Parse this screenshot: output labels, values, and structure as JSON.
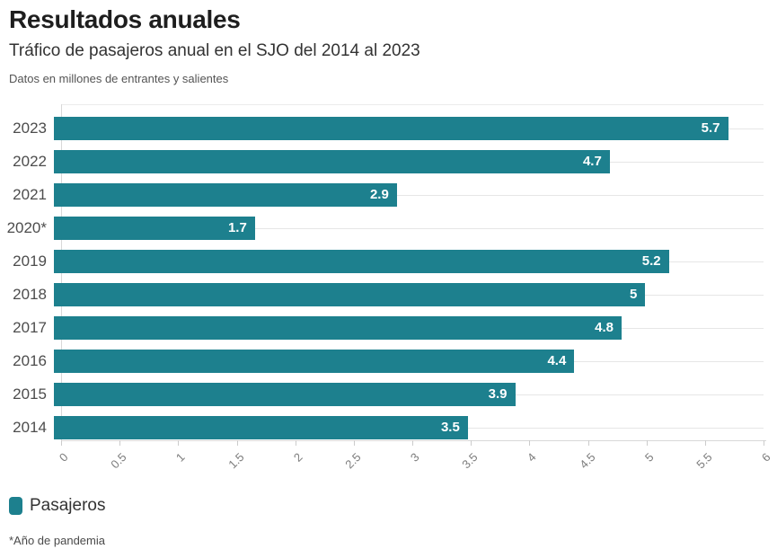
{
  "header": {
    "title": "Resultados anuales",
    "subtitle": "Tráfico de pasajeros anual en el SJO del 2014 al 2023",
    "description": "Datos en millones de entrantes y salientes"
  },
  "chart_data": {
    "type": "bar",
    "orientation": "horizontal",
    "title": "Resultados anuales",
    "subtitle": "Tráfico de pasajeros anual en el SJO del 2014 al 2023",
    "units_note": "Datos en millones de entrantes y salientes",
    "categories": [
      "2023",
      "2022",
      "2021",
      "2020*",
      "2019",
      "2018",
      "2017",
      "2016",
      "2015",
      "2014"
    ],
    "values": [
      5.7,
      4.7,
      2.9,
      1.7,
      5.2,
      5,
      4.8,
      4.4,
      3.9,
      3.5
    ],
    "value_labels": [
      "5.7",
      "4.7",
      "2.9",
      "1.7",
      "5.2",
      "5",
      "4.8",
      "4.4",
      "3.9",
      "3.5"
    ],
    "x_ticks": [
      "0",
      "0.5",
      "1",
      "1.5",
      "2",
      "2.5",
      "3",
      "3.5",
      "4",
      "4.5",
      "5",
      "5.5",
      "6"
    ],
    "xlim": [
      0,
      6
    ],
    "xlabel": "",
    "ylabel": "",
    "grid": true,
    "bar_color": "#1d808e",
    "value_label_color": "#ffffff",
    "legend": {
      "position": "bottom",
      "label": "Pasajeros"
    }
  },
  "footer": {
    "note": "*Año de pandemia"
  }
}
